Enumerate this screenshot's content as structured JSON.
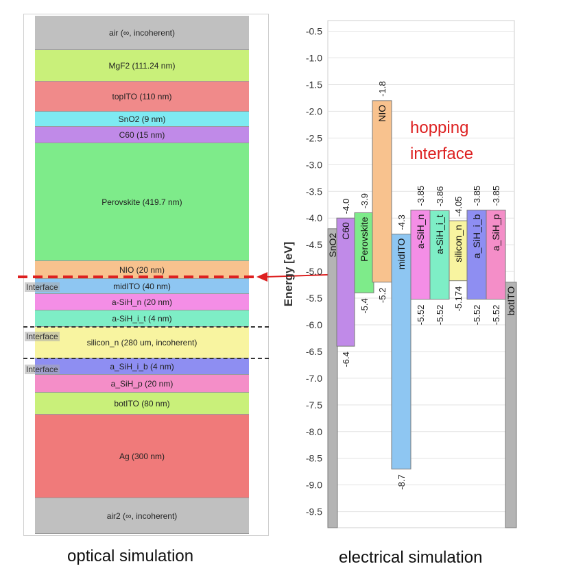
{
  "optical": {
    "caption": "optical simulation",
    "layers": [
      {
        "label": "air (∞, incoherent)",
        "color": "#c0c0c0"
      },
      {
        "label": "MgF2 (111.24 nm)",
        "color": "#c9f07a"
      },
      {
        "label": "topITO (110 nm)",
        "color": "#f08a8a"
      },
      {
        "label": "SnO2 (9 nm)",
        "color": "#7eeaf2"
      },
      {
        "label": "C60 (15 nm)",
        "color": "#c08ae8"
      },
      {
        "label": "Perovskite (419.7 nm)",
        "color": "#7eeb8a"
      },
      {
        "label": "NIO (20 nm)",
        "color": "#f8c28e"
      },
      {
        "label": "midITO (40 nm)",
        "color": "#8ec6f2"
      },
      {
        "label": "a-SiH_n (20 nm)",
        "color": "#f48ee6"
      },
      {
        "label": "a-SiH_i_t (4 nm)",
        "color": "#7eeec6"
      },
      {
        "label": "silicon_n (280 um, incoherent)",
        "color": "#f8f4a0"
      },
      {
        "label": "a_SiH_i_b (4 nm)",
        "color": "#8e8ef2"
      },
      {
        "label": "a_SiH_p (20 nm)",
        "color": "#f48ec8"
      },
      {
        "label": "botITO (80 nm)",
        "color": "#c9f07a"
      },
      {
        "label": "Ag (300 nm)",
        "color": "#f07a7a"
      },
      {
        "label": "air2 (∞, incoherent)",
        "color": "#c0c0c0"
      }
    ],
    "interfaces": [
      "Interface",
      "Interface",
      "Interface"
    ]
  },
  "electrical": {
    "caption": "electrical simulation",
    "annotation": "hopping interface",
    "y_axis_label": "Energy [eV]",
    "ylim": [
      -9.8,
      -0.3
    ],
    "ticks": [
      -0.5,
      -1.0,
      -1.5,
      -2.0,
      -2.5,
      -3.0,
      -3.5,
      -4.0,
      -4.5,
      -5.0,
      -5.5,
      -6.0,
      -6.5,
      -7.0,
      -7.5,
      -8.0,
      -8.5,
      -9.0,
      -9.5
    ],
    "tick_labels": [
      "-0.5",
      "-1.0",
      "-1.5",
      "-2.0",
      "-2.5",
      "-3.0",
      "-3.5",
      "-4.0",
      "-4.5",
      "-5.0",
      "-5.5",
      "-6.0",
      "-6.5",
      "-7.0",
      "-7.5",
      "-8.0",
      "-8.5",
      "-9.0",
      "-9.5"
    ]
  },
  "chart_data": {
    "type": "bar",
    "ylabel": "Energy [eV]",
    "ylim": [
      -9.8,
      -0.3
    ],
    "grid": true,
    "bands": [
      {
        "name": "SnO2",
        "top": -4.2,
        "bottom": -9.8,
        "top_label": "",
        "bottom_label": "",
        "color": "#b4b4b4"
      },
      {
        "name": "C60",
        "top": -4.0,
        "bottom": -6.4,
        "top_label": "-4.0",
        "bottom_label": "-6.4",
        "color": "#c08ae8"
      },
      {
        "name": "Perovskite",
        "top": -3.9,
        "bottom": -5.4,
        "top_label": "-3.9",
        "bottom_label": "-5.4",
        "color": "#7eeb8a"
      },
      {
        "name": "NIO",
        "top": -1.8,
        "bottom": -5.2,
        "top_label": "-1.8",
        "bottom_label": "-5.2",
        "color": "#f8c28e"
      },
      {
        "name": "midITO",
        "top": -4.3,
        "bottom": -8.7,
        "top_label": "-4.3",
        "bottom_label": "-8.7",
        "color": "#8ec6f2"
      },
      {
        "name": "a-SiH_n",
        "top": -3.85,
        "bottom": -5.52,
        "top_label": "-3.85",
        "bottom_label": "-5.52",
        "color": "#f48ee6"
      },
      {
        "name": "a-SiH_i_t",
        "top": -3.86,
        "bottom": -5.52,
        "top_label": "-3.86",
        "bottom_label": "-5.52",
        "color": "#7eeec6"
      },
      {
        "name": "silicon_n",
        "top": -4.05,
        "bottom": -5.174,
        "top_label": "-4.05",
        "bottom_label": "-5.174",
        "color": "#f8f4a0"
      },
      {
        "name": "a_SiH_i_b",
        "top": -3.85,
        "bottom": -5.52,
        "top_label": "-3.85",
        "bottom_label": "-5.52",
        "color": "#8e8ef2"
      },
      {
        "name": "a_SiH_p",
        "top": -3.85,
        "bottom": -5.52,
        "top_label": "-3.85",
        "bottom_label": "-5.52",
        "color": "#f48ec8"
      },
      {
        "name": "botITO",
        "top": -5.2,
        "bottom": -9.8,
        "top_label": "",
        "bottom_label": "",
        "color": "#b4b4b4"
      }
    ]
  },
  "colors": {
    "accent_red": "#dd2020",
    "grid": "#e2e2e2"
  }
}
